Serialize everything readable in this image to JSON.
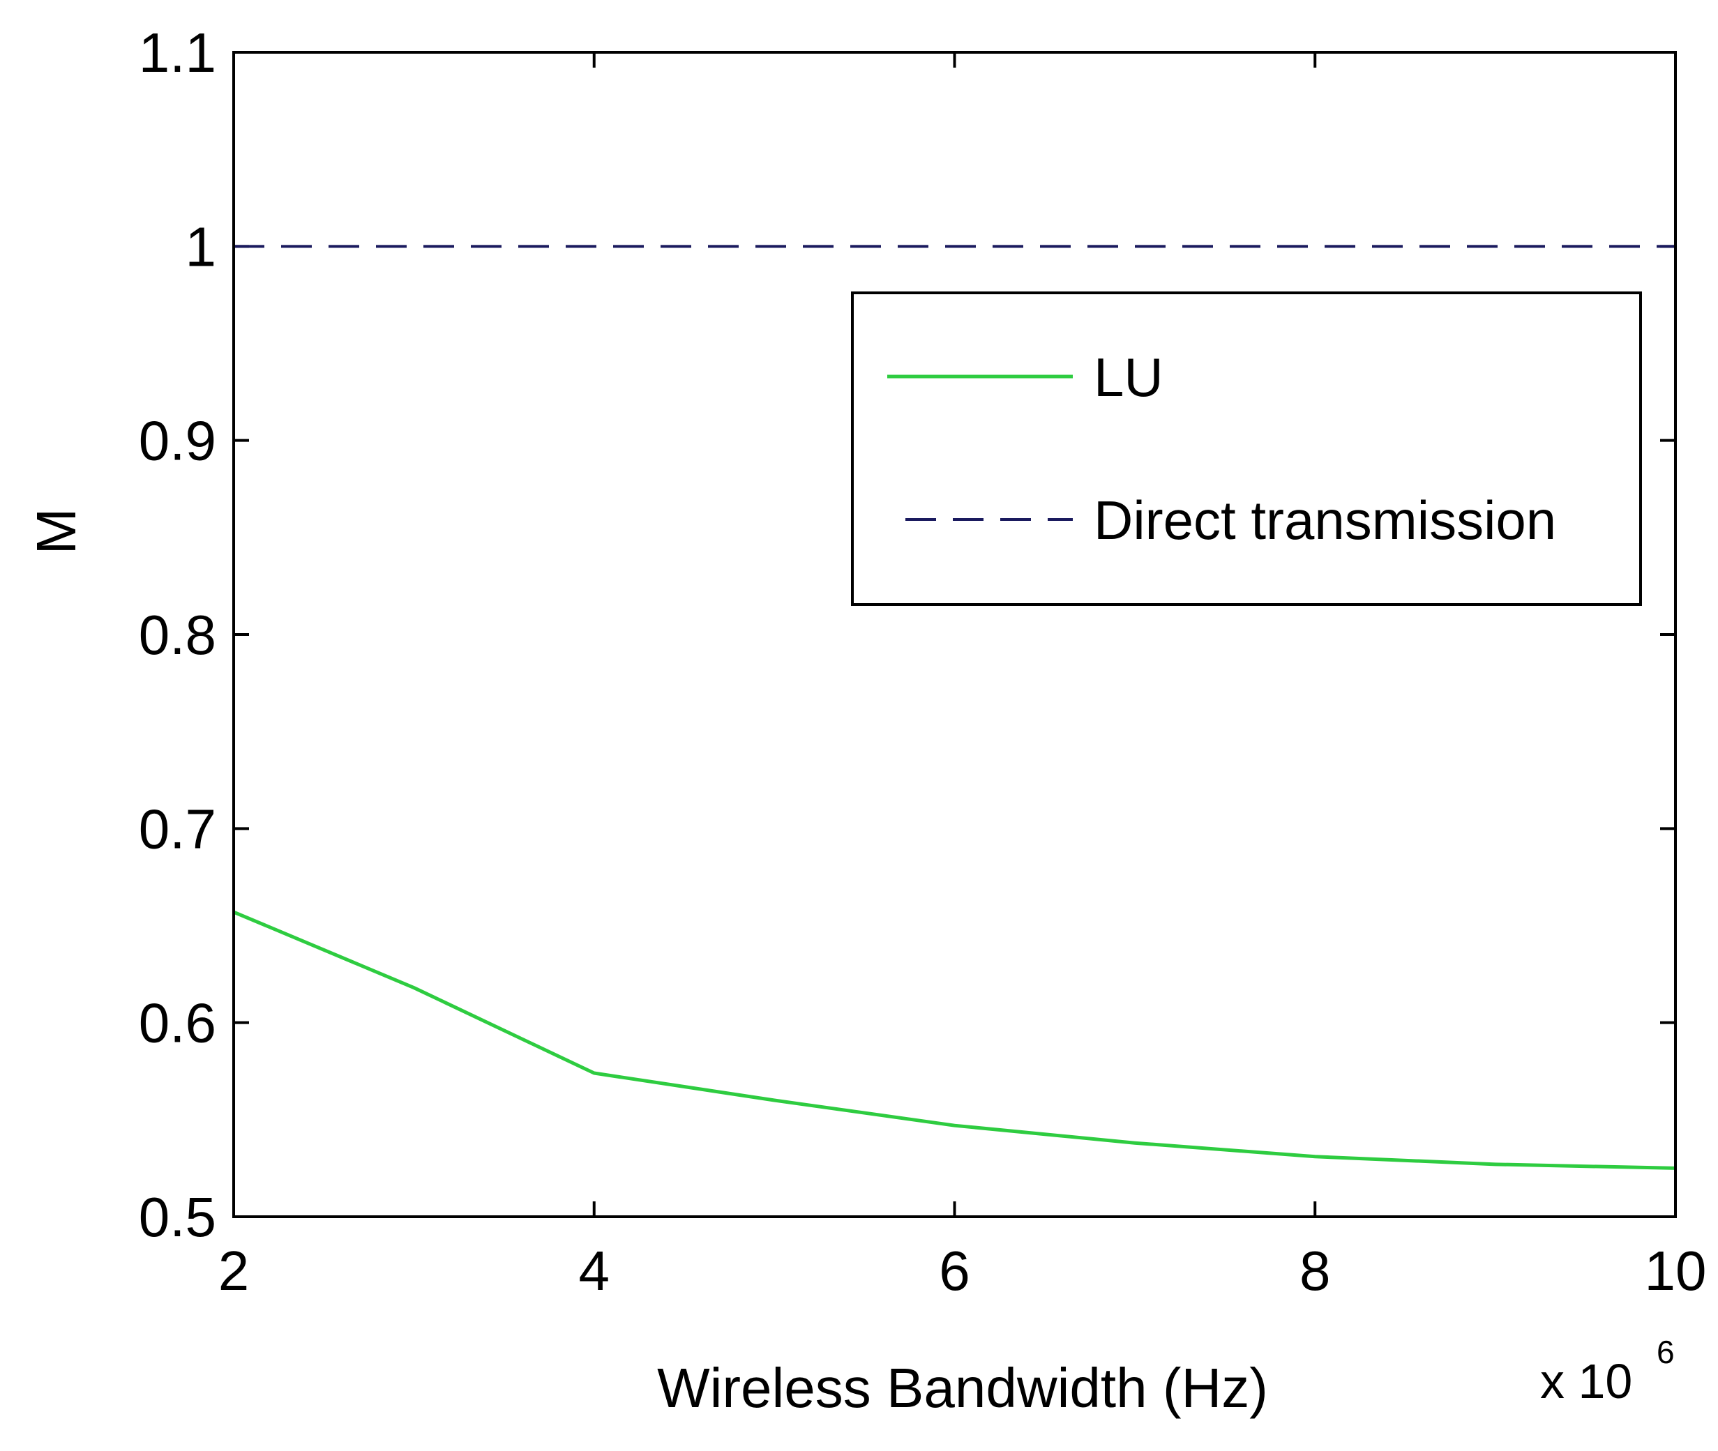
{
  "chart_data": {
    "type": "line",
    "xlabel": "Wireless Bandwidth (Hz)",
    "ylabel": "M",
    "x_multiplier": {
      "base": "x 10",
      "exponent": "6"
    },
    "xlim": [
      2,
      10
    ],
    "ylim": [
      0.5,
      1.1
    ],
    "xticks": [
      "2",
      "4",
      "6",
      "8",
      "10"
    ],
    "xtick_values": [
      2,
      4,
      6,
      8,
      10
    ],
    "yticks": [
      "0.5",
      "0.6",
      "0.7",
      "0.8",
      "0.9",
      "1",
      "1.1"
    ],
    "ytick_values": [
      0.5,
      0.6,
      0.7,
      0.8,
      0.9,
      1.0,
      1.1
    ],
    "grid": false,
    "legend_position": "top-right",
    "series": [
      {
        "name": "LU",
        "style": "solid",
        "color": "#2ecc40",
        "x": [
          2,
          3,
          4,
          5,
          6,
          7,
          8,
          9,
          10
        ],
        "y": [
          0.657,
          0.618,
          0.574,
          0.56,
          0.547,
          0.538,
          0.531,
          0.527,
          0.525
        ]
      },
      {
        "name": "Direct transmission",
        "style": "dashed",
        "color": "#1a1a5e",
        "x": [
          2,
          10
        ],
        "y": [
          1.0,
          1.0
        ]
      }
    ]
  }
}
